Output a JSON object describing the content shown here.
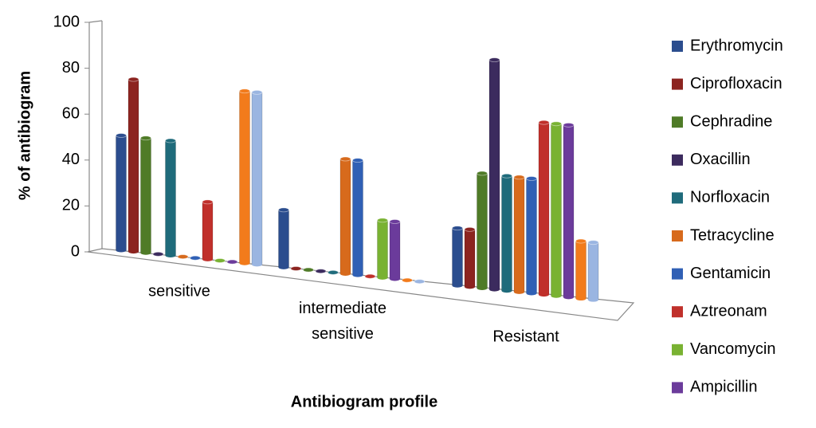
{
  "chart_data": {
    "type": "bar3d",
    "x_label": "Antibiogram profile",
    "y_label": "% of antibiogram",
    "categories": [
      "sensitive",
      "intermediate sensitive",
      "Resistant"
    ],
    "ylim": [
      0,
      100
    ],
    "yticks": [
      0,
      20,
      40,
      60,
      80,
      100
    ],
    "series": [
      {
        "name": "Erythromycin",
        "color": "#2b4d8e",
        "values": [
          50,
          25,
          25
        ]
      },
      {
        "name": "Ciprofloxacin",
        "color": "#8c2420",
        "values": [
          75,
          0,
          25
        ]
      },
      {
        "name": "Cephradine",
        "color": "#4f7b27",
        "values": [
          50,
          0,
          50
        ]
      },
      {
        "name": "Oxacillin",
        "color": "#3c2b5e",
        "values": [
          0,
          0,
          100
        ]
      },
      {
        "name": "Norfloxacin",
        "color": "#1f6b7b",
        "values": [
          50,
          0,
          50
        ]
      },
      {
        "name": "Tetracycline",
        "color": "#d76a1c",
        "values": [
          0,
          50,
          50
        ]
      },
      {
        "name": "Gentamicin",
        "color": "#3060b5",
        "values": [
          0,
          50,
          50
        ]
      },
      {
        "name": "Aztreonam",
        "color": "#c0302b",
        "values": [
          25,
          0,
          75
        ]
      },
      {
        "name": "Vancomycin",
        "color": "#79b232",
        "values": [
          0,
          25,
          75
        ]
      },
      {
        "name": "Ampicillin",
        "color": "#6b3b9b",
        "values": [
          0,
          25,
          75
        ]
      },
      {
        "color": "#f27b1b",
        "values": [
          75,
          0,
          25
        ]
      },
      {
        "color": "#9ab5e1",
        "values": [
          75,
          0,
          25
        ]
      }
    ]
  }
}
